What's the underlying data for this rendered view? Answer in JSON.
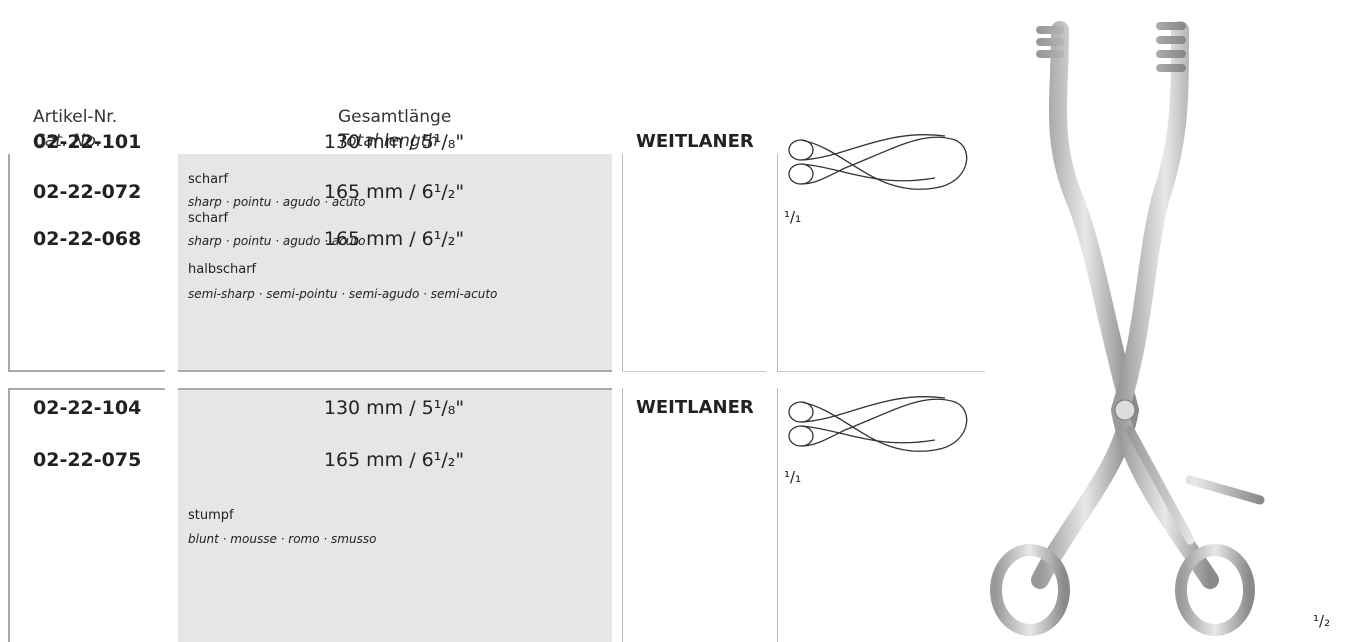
{
  "header": {
    "article_label": "Artikel-Nr.",
    "article_label_en": "Cat. No.",
    "length_label": "Gesamtlänge",
    "length_label_en": "Total length"
  },
  "groups": [
    {
      "name": "WEITLANER",
      "scale": "¹/₁",
      "items": [
        {
          "article": "02-22-101",
          "length": "130 mm / 5¹/₈\"",
          "grade": "scharf",
          "grade_translations": "sharp · pointu · agudo · acuto"
        },
        {
          "article": "02-22-072",
          "length": "165 mm / 6¹/₂\"",
          "grade": "scharf",
          "grade_translations": "sharp · pointu · agudo · acuto"
        },
        {
          "article": "02-22-068",
          "length": "165 mm / 6¹/₂\"",
          "grade": "halbscharf",
          "grade_translations": "semi-sharp · semi-pointu · semi-agudo · semi-acuto"
        }
      ]
    },
    {
      "name": "WEITLANER",
      "scale": "¹/₁",
      "grade": "stumpf",
      "grade_translations": "blunt · mousse · romo · smusso",
      "items": [
        {
          "article": "02-22-104",
          "length": "130 mm / 5¹/₈\""
        },
        {
          "article": "02-22-075",
          "length": "165 mm / 6¹/₂\""
        }
      ]
    }
  ],
  "image_scale": "¹/₂"
}
